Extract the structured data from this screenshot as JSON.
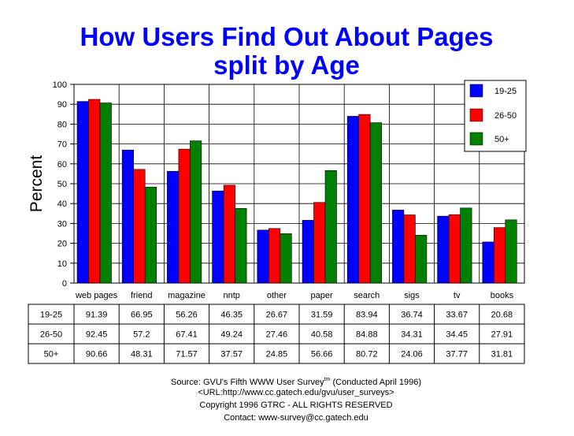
{
  "chart_data": {
    "type": "bar",
    "title": "How Users Find Out About Pages",
    "subtitle": "split by Age",
    "xlabel": "",
    "ylabel": "Percent",
    "ylim": [
      0,
      100
    ],
    "yticks": [
      0,
      10,
      20,
      30,
      40,
      50,
      60,
      70,
      80,
      90,
      100
    ],
    "grid": true,
    "legend_position": "top-right",
    "categories": [
      "web pages",
      "friend",
      "magazine",
      "nntp",
      "other",
      "paper",
      "search",
      "sigs",
      "tv",
      "books"
    ],
    "series": [
      {
        "name": "19-25",
        "color": "#0000ff",
        "values": [
          91.39,
          66.95,
          56.26,
          46.35,
          26.67,
          31.59,
          83.94,
          36.74,
          33.67,
          20.68
        ],
        "labels": [
          "91.39",
          "66.95",
          "56.26",
          "46.35",
          "26.67",
          "31.59",
          "83.94",
          "36.74",
          "33.67",
          "20.68"
        ]
      },
      {
        "name": "26-50",
        "color": "#ff0000",
        "values": [
          92.45,
          57.2,
          67.41,
          49.24,
          27.46,
          40.58,
          84.88,
          34.31,
          34.45,
          27.91
        ],
        "labels": [
          "92.45",
          "57.2",
          "67.41",
          "49.24",
          "27.46",
          "40.58",
          "84.88",
          "34.31",
          "34.45",
          "27.91"
        ]
      },
      {
        "name": "50+",
        "color": "#008000",
        "values": [
          90.66,
          48.31,
          71.57,
          37.57,
          24.85,
          56.66,
          80.72,
          24.06,
          37.77,
          31.81
        ],
        "labels": [
          "90.66",
          "48.31",
          "71.57",
          "37.57",
          "24.85",
          "56.66",
          "80.72",
          "24.06",
          "37.77",
          "31.81"
        ]
      }
    ]
  },
  "source": {
    "line1_prefix": "Source: GVU's Fifth WWW User Survey",
    "line1_sup": "tm",
    "line1_suffix": "  (Conducted April 1996)",
    "line2": "<URL:http://www.cc.gatech.edu/gvu/user_surveys>",
    "line3": "Copyright 1996 GTRC -  ALL RIGHTS RESERVED",
    "line4": "Contact: www-survey@cc.gatech.edu"
  }
}
